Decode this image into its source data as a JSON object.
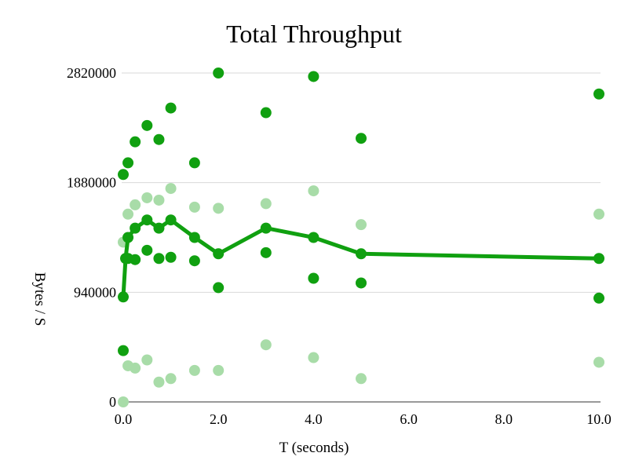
{
  "chart_data": {
    "type": "scatter",
    "title": "Total Throughput",
    "xlabel": "T (seconds)",
    "ylabel": "Bytes / S",
    "xlim": [
      0,
      10
    ],
    "ylim": [
      0,
      2820000
    ],
    "x_ticks": [
      0,
      2,
      4,
      6,
      8,
      10
    ],
    "x_tick_labels": [
      "0.0",
      "2.0",
      "4.0",
      "6.0",
      "8.0",
      "10.0"
    ],
    "y_ticks": [
      0,
      940000,
      1880000,
      2820000
    ],
    "y_tick_labels": [
      "0",
      "940000",
      "1880000",
      "2820000"
    ],
    "grid": true,
    "legend": "none",
    "series": [
      {
        "role": "min",
        "color": "#a8dca8",
        "points": [
          [
            0,
            0
          ],
          [
            0.1,
            310000
          ],
          [
            0.25,
            290000
          ],
          [
            0.5,
            360000
          ],
          [
            0.75,
            170000
          ],
          [
            1.0,
            200000
          ],
          [
            1.5,
            270000
          ],
          [
            2.0,
            270000
          ],
          [
            3.0,
            490000
          ],
          [
            4.0,
            380000
          ],
          [
            5.0,
            200000
          ],
          [
            10.0,
            340000
          ]
        ]
      },
      {
        "role": "lower",
        "color": "#10a010",
        "points": [
          [
            0,
            440000
          ],
          [
            0.1,
            1230000
          ],
          [
            0.25,
            1220000
          ],
          [
            0.5,
            1300000
          ],
          [
            0.75,
            1230000
          ],
          [
            1.0,
            1240000
          ],
          [
            1.5,
            1210000
          ],
          [
            2.0,
            980000
          ],
          [
            3.0,
            1280000
          ],
          [
            4.0,
            1060000
          ],
          [
            5.0,
            1020000
          ],
          [
            10.0,
            890000
          ]
        ]
      },
      {
        "role": "mean",
        "color": "#10a010",
        "line": true,
        "points": [
          [
            0,
            900000
          ],
          [
            0.05,
            1230000
          ],
          [
            0.1,
            1410000
          ],
          [
            0.25,
            1490000
          ],
          [
            0.5,
            1560000
          ],
          [
            0.75,
            1490000
          ],
          [
            1.0,
            1560000
          ],
          [
            1.5,
            1410000
          ],
          [
            2.0,
            1270000
          ],
          [
            3.0,
            1490000
          ],
          [
            4.0,
            1410000
          ],
          [
            5.0,
            1270000
          ],
          [
            10.0,
            1230000
          ]
        ]
      },
      {
        "role": "upper",
        "color": "#a8dca8",
        "points": [
          [
            0,
            1370000
          ],
          [
            0.1,
            1610000
          ],
          [
            0.25,
            1690000
          ],
          [
            0.5,
            1750000
          ],
          [
            0.75,
            1730000
          ],
          [
            1.0,
            1830000
          ],
          [
            1.5,
            1670000
          ],
          [
            2.0,
            1660000
          ],
          [
            3.0,
            1700000
          ],
          [
            4.0,
            1810000
          ],
          [
            5.0,
            1520000
          ],
          [
            10.0,
            1610000
          ]
        ]
      },
      {
        "role": "max",
        "color": "#10a010",
        "points": [
          [
            0,
            1950000
          ],
          [
            0.1,
            2050000
          ],
          [
            0.25,
            2230000
          ],
          [
            0.5,
            2370000
          ],
          [
            0.75,
            2250000
          ],
          [
            1.0,
            2520000
          ],
          [
            1.5,
            2050000
          ],
          [
            2.0,
            2820000
          ],
          [
            3.0,
            2480000
          ],
          [
            4.0,
            2790000
          ],
          [
            5.0,
            2260000
          ],
          [
            10.0,
            2640000
          ]
        ]
      }
    ]
  }
}
